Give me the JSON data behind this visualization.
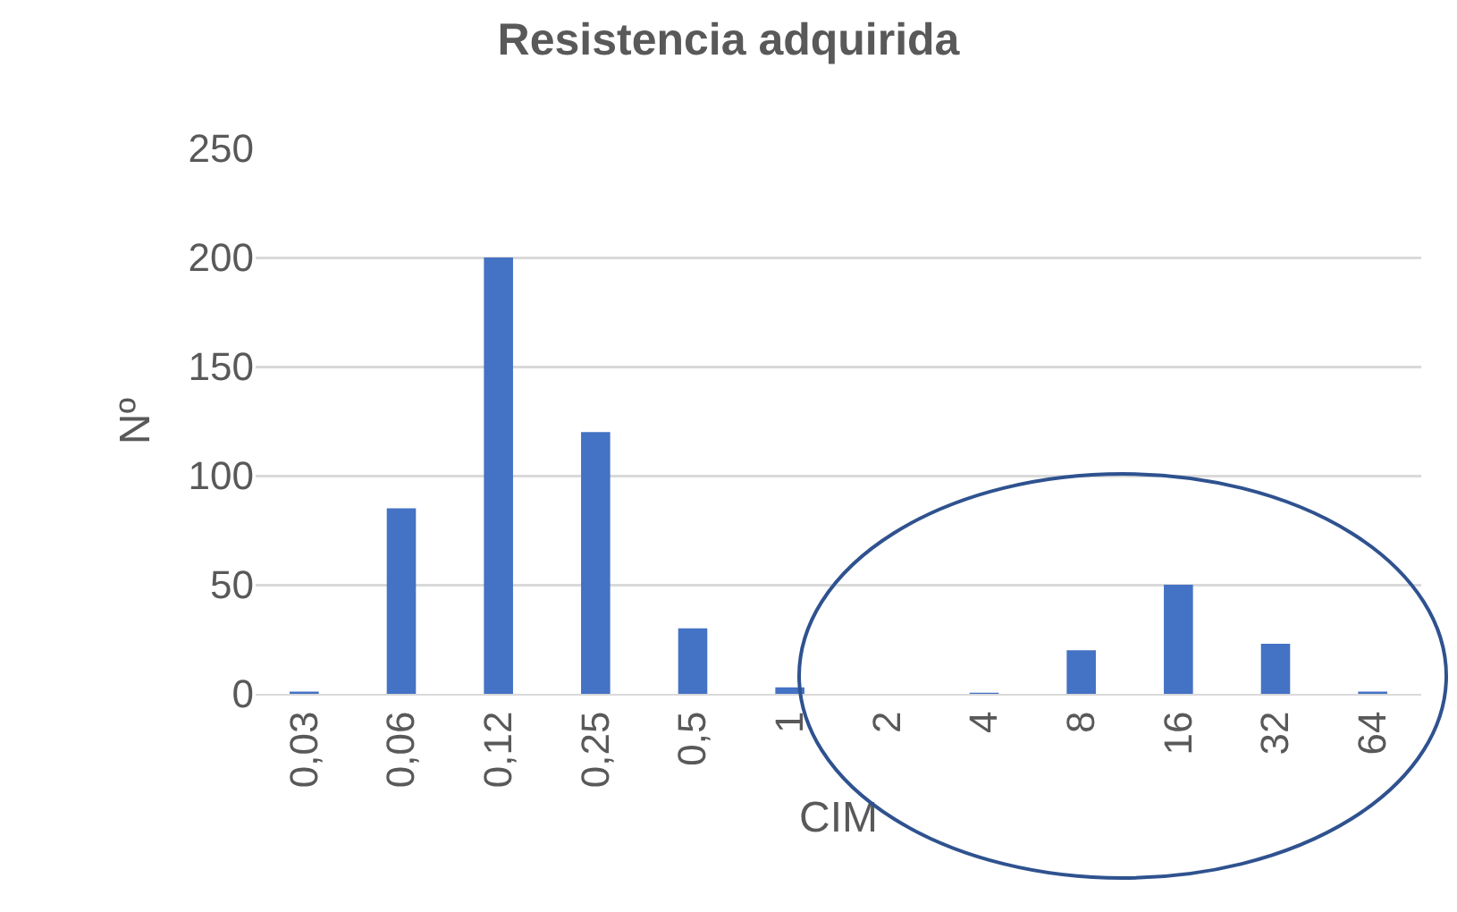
{
  "chart_data": {
    "type": "bar",
    "title": "Resistencia adquirida",
    "xlabel": "CIM",
    "ylabel": "Nº",
    "categories": [
      "0,03",
      "0,06",
      "0,12",
      "0,25",
      "0,5",
      "1",
      "2",
      "4",
      "8",
      "16",
      "32",
      "64"
    ],
    "values": [
      1,
      85,
      200,
      120,
      30,
      3,
      0,
      0.5,
      20,
      50,
      23,
      1
    ],
    "color": "#4472c4",
    "ylim": [
      0,
      250
    ],
    "yticks": [
      0,
      50,
      100,
      150,
      200,
      250
    ],
    "grid": "y"
  }
}
